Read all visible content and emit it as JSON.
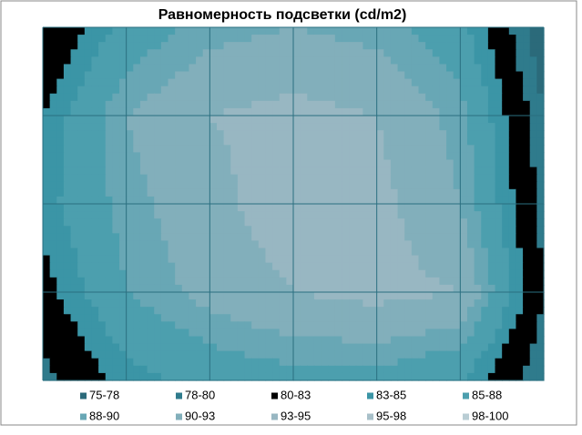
{
  "chart_data": {
    "type": "contour",
    "title": "Равномерность подсветки (cd/m2)",
    "z": [
      [
        80,
        86,
        89,
        90,
        89,
        86,
        76
      ],
      [
        83,
        90,
        93,
        94,
        93,
        89,
        78
      ],
      [
        84,
        89,
        92,
        95,
        94,
        90,
        79
      ],
      [
        82,
        88,
        91,
        93,
        94,
        93,
        80
      ],
      [
        79,
        84,
        86,
        87,
        87,
        85,
        78
      ]
    ],
    "bands": [
      {
        "name": "75-78",
        "from": 75,
        "to": 78,
        "color": "#2b6a7a"
      },
      {
        "name": "78-80",
        "from": 78,
        "to": 80,
        "color": "#2f7b8c"
      },
      {
        "name": "80-83",
        "from": 80,
        "to": 83,
        "color": "#3688999"
      },
      {
        "name": "83-85",
        "from": 83,
        "to": 85,
        "color": "#3b95a6"
      },
      {
        "name": "85-88",
        "from": 85,
        "to": 88,
        "color": "#4c9fae"
      },
      {
        "name": "88-90",
        "from": 88,
        "to": 90,
        "color": "#68a7b5"
      },
      {
        "name": "90-93",
        "from": 90,
        "to": 93,
        "color": "#82afbb"
      },
      {
        "name": "93-95",
        "from": 93,
        "to": 95,
        "color": "#98b7c2"
      },
      {
        "name": "95-98",
        "from": 95,
        "to": 98,
        "color": "#a8c0c9"
      },
      {
        "name": "98-100",
        "from": 98,
        "to": 100,
        "color": "#b9cdd4"
      }
    ],
    "grid": true
  }
}
